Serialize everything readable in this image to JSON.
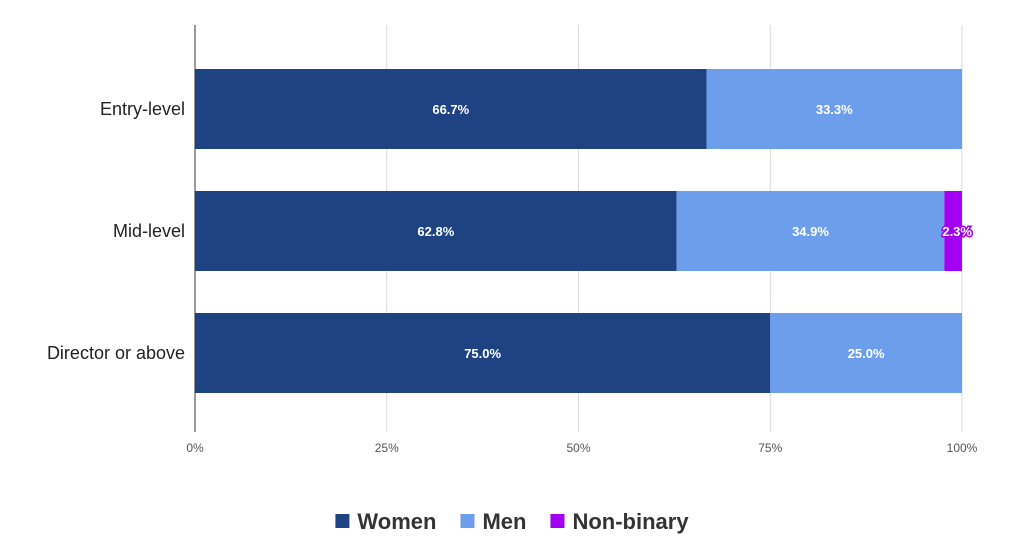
{
  "chart_data": {
    "type": "bar",
    "orientation": "horizontal",
    "stacked": true,
    "categories": [
      "Entry-level",
      "Mid-level",
      "Director or above"
    ],
    "series": [
      {
        "name": "Women",
        "color": "#1f4283",
        "values": [
          66.7,
          62.8,
          75.0
        ],
        "labels": [
          "66.7%",
          "62.8%",
          "75.0%"
        ]
      },
      {
        "name": "Men",
        "color": "#6d9eeb",
        "values": [
          33.3,
          34.9,
          25.0
        ],
        "labels": [
          "33.3%",
          "34.9%",
          "25.0%"
        ]
      },
      {
        "name": "Non-binary",
        "color": "#a100f2",
        "values": [
          0,
          2.3,
          0
        ],
        "labels": [
          "",
          "2.3%",
          ""
        ]
      }
    ],
    "xlim": [
      0,
      100
    ],
    "xticks": [
      0,
      25,
      50,
      75,
      100
    ],
    "xtick_labels": [
      "0%",
      "25%",
      "50%",
      "75%",
      "100%"
    ],
    "grid": true,
    "legend_position": "bottom"
  }
}
